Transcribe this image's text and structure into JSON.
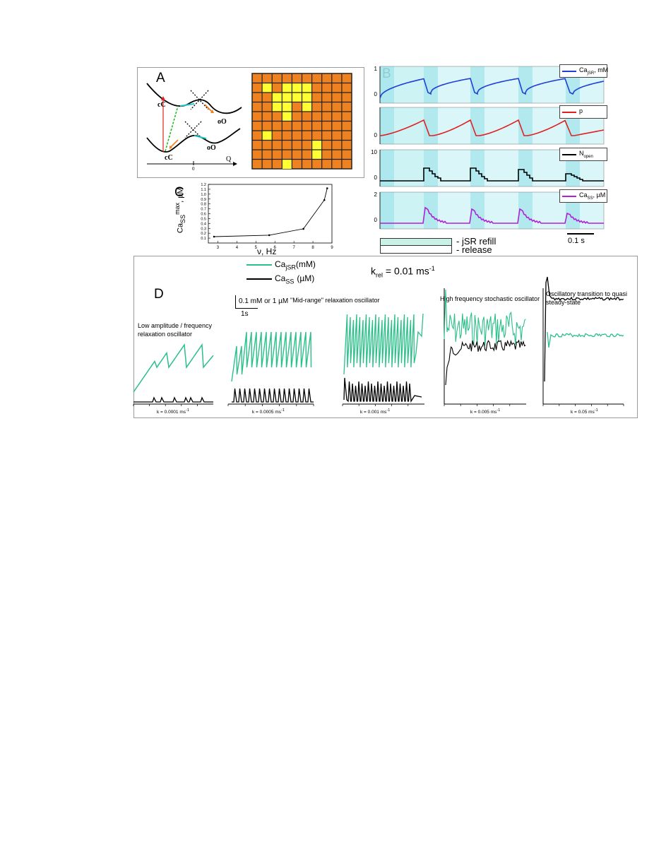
{
  "panelA": {
    "label": "A",
    "upper_left": "cC",
    "upper_right": "oO",
    "lower_left": "cC",
    "lower_right": "oO",
    "axis_label": "Q",
    "axis_zero": "0",
    "grid": {
      "rows": 10,
      "cols": 10,
      "base_color": "#ee8220",
      "open_color": "#ffff33",
      "line_color": "#222222",
      "open_cells": [
        [
          1,
          1
        ],
        [
          1,
          3
        ],
        [
          1,
          4
        ],
        [
          1,
          5
        ],
        [
          2,
          2
        ],
        [
          2,
          3
        ],
        [
          2,
          4
        ],
        [
          2,
          5
        ],
        [
          3,
          2
        ],
        [
          3,
          3
        ],
        [
          3,
          5
        ],
        [
          4,
          3
        ],
        [
          6,
          1
        ],
        [
          7,
          6
        ],
        [
          8,
          6
        ],
        [
          9,
          3
        ]
      ]
    }
  },
  "panelB": {
    "label": "B",
    "rows": [
      {
        "legend": "Ca",
        "legend_sub": "jSR",
        "legend_tail": ", mM",
        "color": "#1f3fd6",
        "ymax": "1",
        "ymin": "0"
      },
      {
        "legend": "p",
        "legend_sub": "",
        "legend_tail": "",
        "color": "#e02020",
        "ymax": "",
        "ymin": "0"
      },
      {
        "legend": "N",
        "legend_sub": "open",
        "legend_tail": "",
        "color": "#000000",
        "ymax": "10",
        "ymin": "0"
      },
      {
        "legend": "Ca",
        "legend_sub": "SS",
        "legend_tail": ", µM",
        "color": "#b020d8",
        "ymax": "2",
        "ymin": "0"
      }
    ],
    "legend_refill": "- jSR refill",
    "legend_release": "- release",
    "scale_bar": "0.1 s",
    "shade_color": "#bdeff2"
  },
  "panelC": {
    "label": "C",
    "chart_data": {
      "type": "line",
      "x": [
        2.8,
        5.7,
        7.5,
        8.6,
        8.75
      ],
      "y": [
        0.13,
        0.16,
        0.29,
        0.88,
        1.12
      ],
      "xlabel": "ν, Hz",
      "ylabel_main": "Ca",
      "ylabel_sub": "SS",
      "ylabel_sup": "max",
      "ylabel_tail": ", µM",
      "xticks": [
        "3",
        "4",
        "5",
        "6",
        "7",
        "8",
        "9"
      ],
      "yticks": [
        "0.1",
        "0.2",
        "0.3",
        "0.4",
        "0.5",
        "0.6",
        "0.7",
        "0.8",
        "0.9",
        "1.0",
        "1.1",
        "1.2"
      ],
      "xlim": [
        2.5,
        9
      ],
      "ylim": [
        0.1,
        1.2
      ]
    }
  },
  "panelD": {
    "label": "D",
    "legend_jsr": "Ca",
    "legend_jsr_sub": "jSR",
    "legend_jsr_tail": "(mM)",
    "legend_ss": "Ca",
    "legend_ss_sub": "SS",
    "legend_ss_tail": "(µM)",
    "jsr_color": "#2bbf8a",
    "ss_color": "#000000",
    "krel_main": "k",
    "krel_sub": "rel",
    "krel_value": " = 0.01 ms",
    "krel_sup": "-1",
    "scale_text": "0.1 mM or 1 µM",
    "scale_time": "1s",
    "titles": {
      "p1": "Low amplitude / frequency relaxation oscillator",
      "p2": "\"Mid-range\" relaxation oscillator",
      "p4": "High frequency stochastic oscillator",
      "p5": "Oscillatory transition to quasi steady-state"
    },
    "captions": [
      "k   = 0.0001 ms",
      "k   = 0.0005 ms",
      "k   = 0.001 ms",
      "k   = 0.005 ms",
      "k   = 0.05 ms"
    ],
    "caption_sub": "refill",
    "caption_sup": "-1"
  }
}
